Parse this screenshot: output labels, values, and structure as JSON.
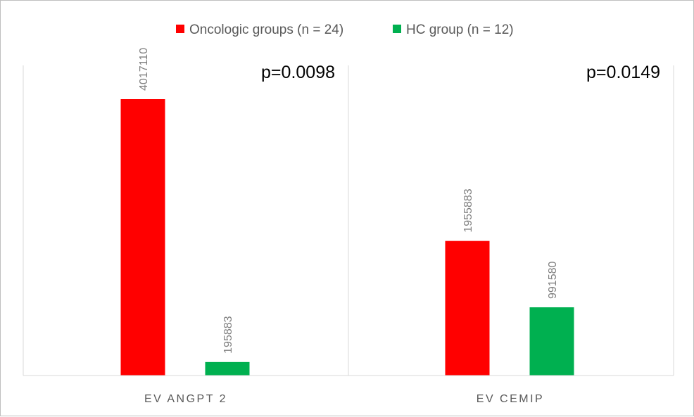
{
  "chart_data": {
    "type": "bar",
    "categories": [
      "EV ANGPT 2",
      "EV CEMIP"
    ],
    "series": [
      {
        "name": "Oncologic groups (n = 24)",
        "color": "#ff0000",
        "values": [
          4017110,
          1955883
        ]
      },
      {
        "name": "HC group (n = 12)",
        "color": "#00b050",
        "values": [
          195883,
          991580
        ]
      }
    ],
    "data_labels": [
      [
        "4017110",
        "1955883"
      ],
      [
        "195883",
        "991580"
      ]
    ],
    "annotations": [
      "p=0.0098",
      "p=0.0149"
    ],
    "legend_position": "top",
    "grid": false,
    "ylim": [
      0,
      4500000
    ]
  }
}
